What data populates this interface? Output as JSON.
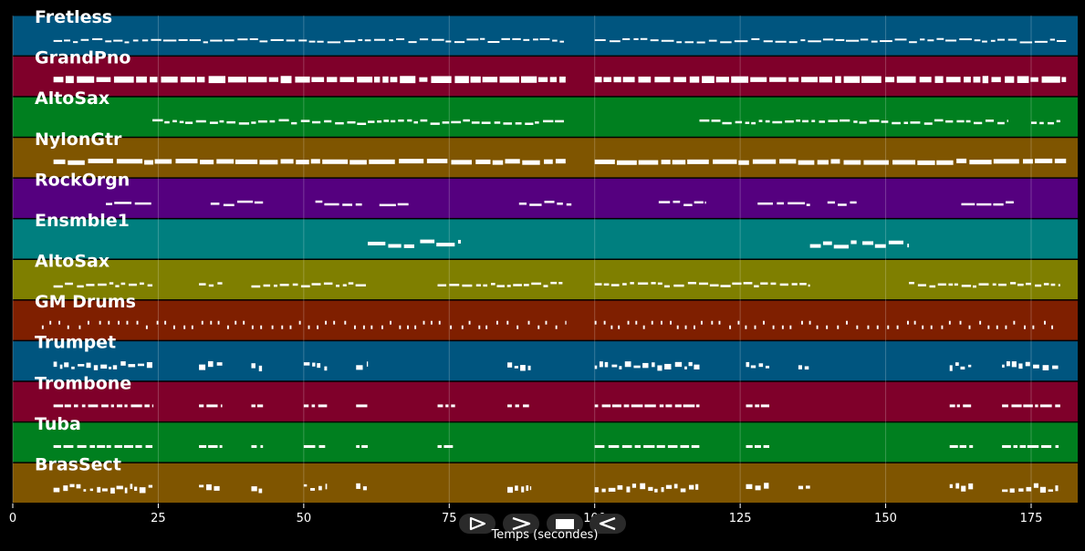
{
  "axis": {
    "xlabel": "Temps (secondes)",
    "x_max": 183,
    "ticks": [
      0,
      25,
      50,
      75,
      100,
      125,
      150,
      175
    ],
    "tick_labels": [
      "0",
      "25",
      "50",
      "75",
      "100",
      "125",
      "150",
      "175"
    ]
  },
  "tracks": [
    {
      "name": "Fretless",
      "color": "#00557f",
      "pattern": "line",
      "segs": [
        [
          7,
          95
        ],
        [
          100,
          181
        ]
      ]
    },
    {
      "name": "GrandPno",
      "color": "#7f002a",
      "pattern": "blocks",
      "segs": [
        [
          7,
          95
        ],
        [
          100,
          181
        ]
      ]
    },
    {
      "name": "AltoSax",
      "color": "#007f1f",
      "pattern": "dashes",
      "segs": [
        [
          24,
          95
        ],
        [
          118,
          171
        ],
        [
          175,
          180
        ]
      ]
    },
    {
      "name": "NylonGtr",
      "color": "#7f5500",
      "pattern": "thick",
      "segs": [
        [
          7,
          95
        ],
        [
          100,
          181
        ]
      ]
    },
    {
      "name": "RockOrgn",
      "color": "#55007f",
      "pattern": "sparse",
      "segs": [
        [
          16,
          24
        ],
        [
          34,
          43
        ],
        [
          52,
          60
        ],
        [
          63,
          68
        ],
        [
          87,
          96
        ],
        [
          111,
          119
        ],
        [
          128,
          137
        ],
        [
          140,
          145
        ],
        [
          163,
          172
        ]
      ]
    },
    {
      "name": "Ensmble1",
      "color": "#007f7f",
      "pattern": "steps",
      "segs": [
        [
          61,
          69
        ],
        [
          70,
          77
        ],
        [
          137,
          145
        ],
        [
          146,
          154
        ]
      ]
    },
    {
      "name": "AltoSax",
      "color": "#7f7f00",
      "pattern": "dashes",
      "segs": [
        [
          7,
          24
        ],
        [
          32,
          36
        ],
        [
          41,
          61
        ],
        [
          73,
          95
        ],
        [
          100,
          137
        ],
        [
          154,
          180
        ]
      ]
    },
    {
      "name": "GM Drums",
      "color": "#7f1f00",
      "pattern": "ticks",
      "segs": [
        [
          5,
          95
        ],
        [
          100,
          180
        ]
      ]
    },
    {
      "name": "Trumpet",
      "color": "#00557f",
      "pattern": "brass",
      "segs": [
        [
          7,
          24
        ],
        [
          32,
          36
        ],
        [
          41,
          43
        ],
        [
          50,
          54
        ],
        [
          59,
          61
        ],
        [
          85,
          89
        ],
        [
          100,
          118
        ],
        [
          126,
          130
        ],
        [
          135,
          137
        ],
        [
          161,
          165
        ],
        [
          170,
          180
        ]
      ]
    },
    {
      "name": "Trombone",
      "color": "#7f002a",
      "pattern": "brass2",
      "segs": [
        [
          7,
          24
        ],
        [
          32,
          36
        ],
        [
          41,
          43
        ],
        [
          50,
          54
        ],
        [
          59,
          61
        ],
        [
          73,
          76
        ],
        [
          85,
          89
        ],
        [
          100,
          118
        ],
        [
          126,
          130
        ],
        [
          161,
          165
        ],
        [
          170,
          180
        ]
      ]
    },
    {
      "name": "Tuba",
      "color": "#007f1f",
      "pattern": "brass2",
      "segs": [
        [
          7,
          24
        ],
        [
          32,
          36
        ],
        [
          41,
          43
        ],
        [
          50,
          54
        ],
        [
          59,
          61
        ],
        [
          73,
          76
        ],
        [
          100,
          118
        ],
        [
          126,
          130
        ],
        [
          161,
          165
        ],
        [
          170,
          180
        ]
      ]
    },
    {
      "name": "BrasSect",
      "color": "#7f5500",
      "pattern": "brass",
      "segs": [
        [
          7,
          24
        ],
        [
          32,
          36
        ],
        [
          41,
          43
        ],
        [
          50,
          54
        ],
        [
          59,
          61
        ],
        [
          85,
          89
        ],
        [
          100,
          118
        ],
        [
          126,
          130
        ],
        [
          135,
          137
        ],
        [
          161,
          165
        ],
        [
          170,
          180
        ]
      ]
    }
  ],
  "controls": [
    {
      "name": "play-button",
      "icon": "play-outline-icon"
    },
    {
      "name": "forward-button",
      "icon": "chevron-right-icon"
    },
    {
      "name": "stop-button",
      "icon": "stop-icon"
    },
    {
      "name": "back-button",
      "icon": "chevron-left-icon"
    }
  ]
}
